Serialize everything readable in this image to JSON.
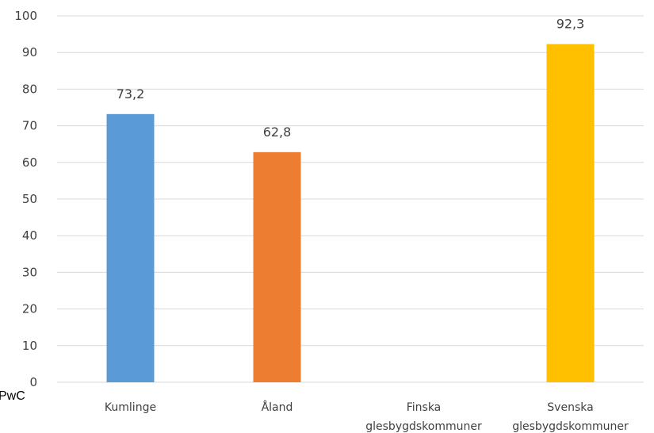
{
  "source_text": "PwC",
  "chart_data": {
    "type": "bar",
    "categories": [
      [
        "Kumlinge"
      ],
      [
        "Åland"
      ],
      [
        "Finska",
        "glesbygdskommuner"
      ],
      [
        "Svenska",
        "glesbygdskommuner"
      ]
    ],
    "values": [
      73.2,
      62.8,
      null,
      92.3
    ],
    "value_labels": [
      "73,2",
      "62,8",
      "",
      "92,3"
    ],
    "colors": [
      "#5b9bd5",
      "#ed7d31",
      "#a5a5a5",
      "#ffc000"
    ],
    "ylim": [
      0,
      100
    ],
    "yticks": [
      0,
      10,
      20,
      30,
      40,
      50,
      60,
      70,
      80,
      90,
      100
    ],
    "grid": true,
    "title": "",
    "xlabel": "",
    "ylabel": ""
  }
}
